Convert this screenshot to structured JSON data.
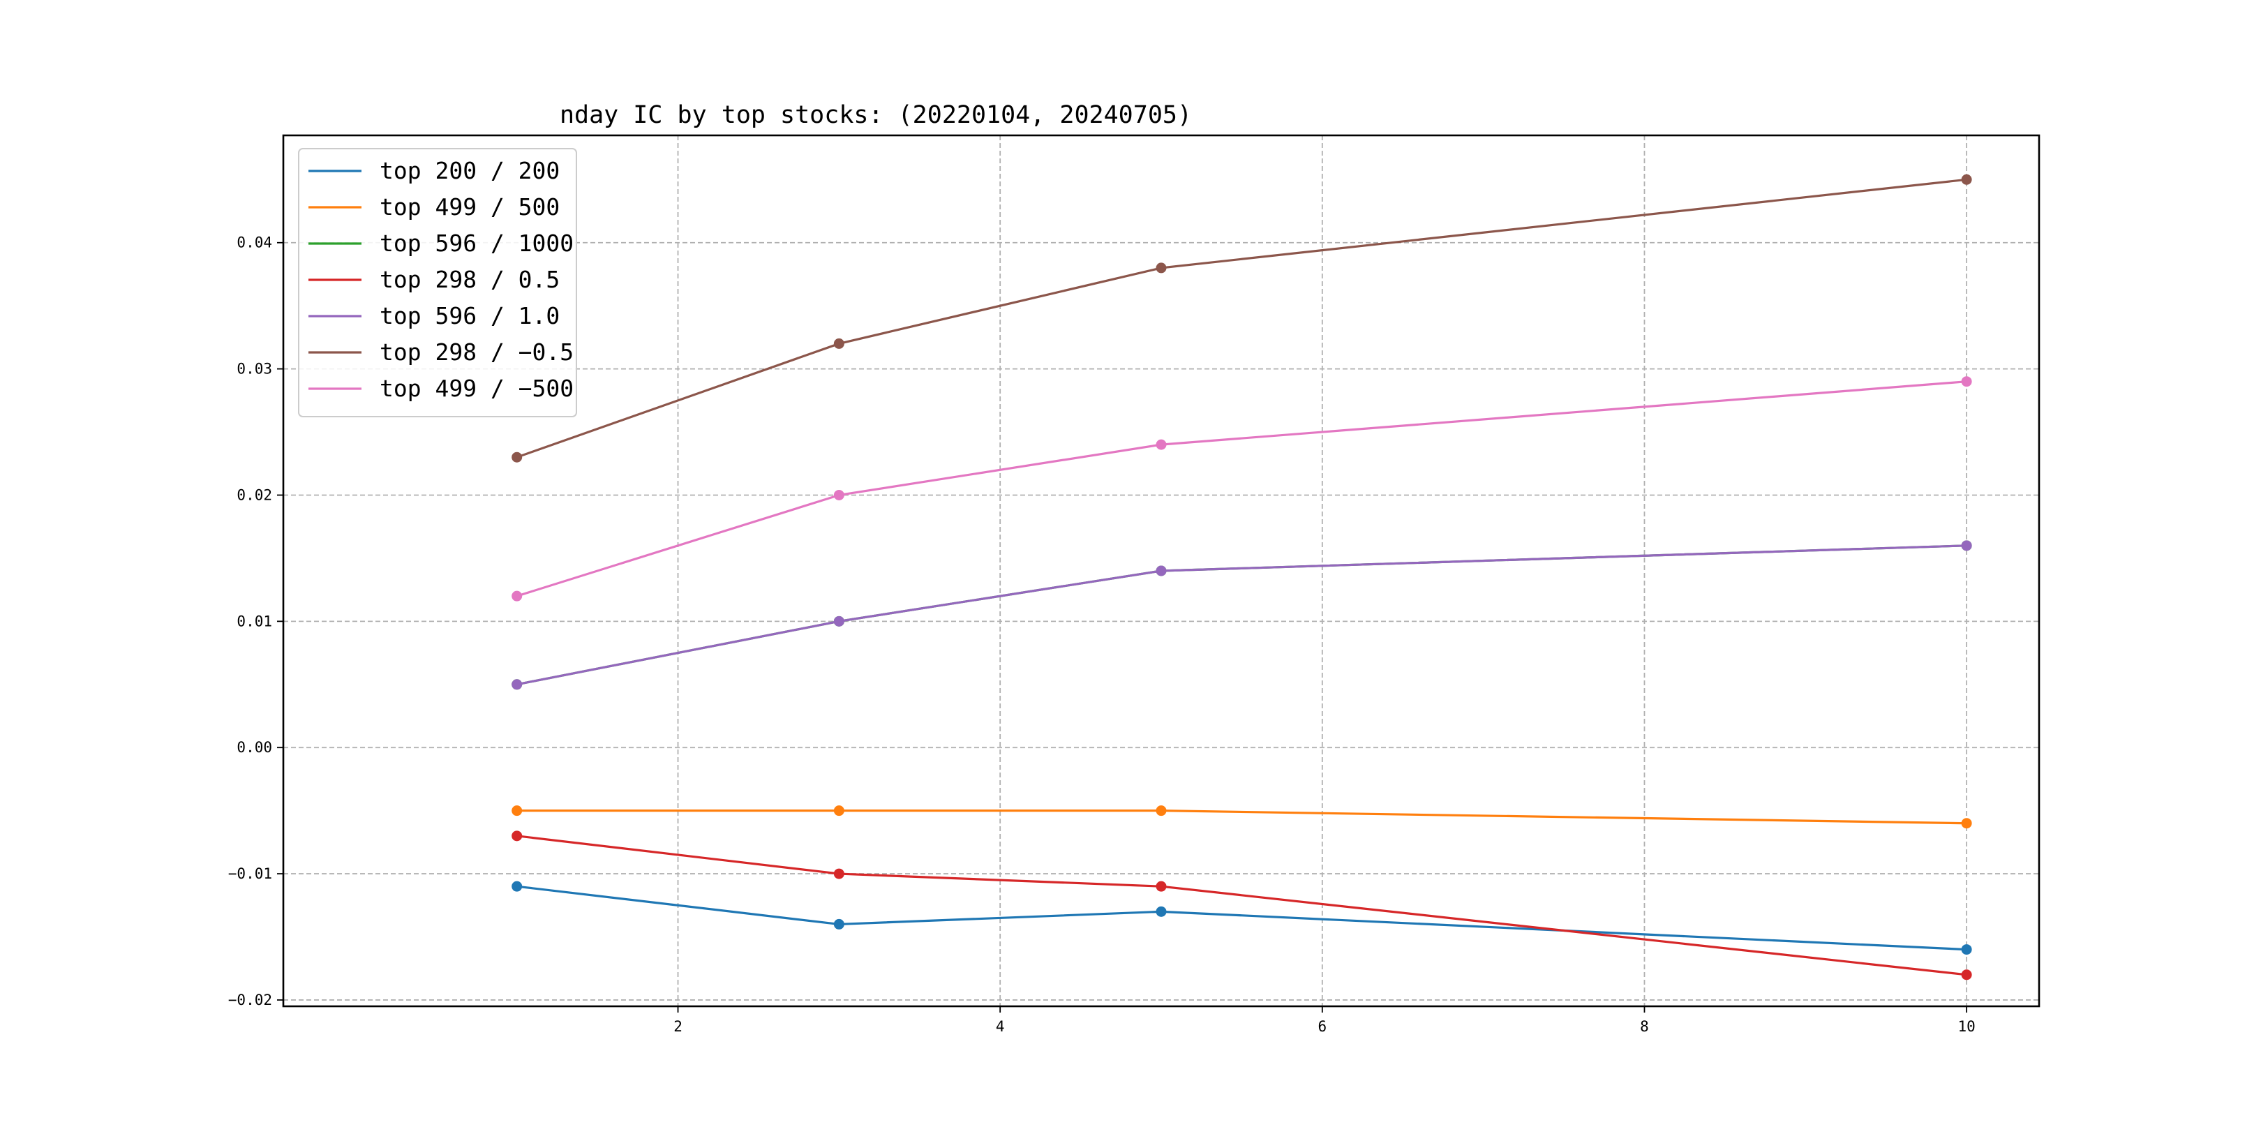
{
  "chart_data": {
    "type": "line",
    "title": "nday IC by top stocks: (20220104, 20240705)",
    "xlabel": "",
    "ylabel": "",
    "x": [
      1,
      3,
      5,
      10
    ],
    "xlim": [
      -0.45,
      10.45
    ],
    "ylim": [
      -0.0205,
      0.0485
    ],
    "xticks": [
      2,
      4,
      6,
      8,
      10
    ],
    "xtick_labels": [
      "2",
      "4",
      "6",
      "8",
      "10"
    ],
    "yticks": [
      -0.02,
      -0.01,
      0.0,
      0.01,
      0.02,
      0.03,
      0.04
    ],
    "ytick_labels": [
      "−0.02",
      "−0.01",
      "0.00",
      "0.01",
      "0.02",
      "0.03",
      "0.04"
    ],
    "grid": true,
    "legend_position": "top-left",
    "series": [
      {
        "name": "top 200 / 200",
        "color": "#1f77b4",
        "values": [
          -0.011,
          -0.014,
          -0.013,
          -0.016
        ]
      },
      {
        "name": "top 499 / 500",
        "color": "#ff7f0e",
        "values": [
          -0.005,
          -0.005,
          -0.005,
          -0.006
        ]
      },
      {
        "name": "top 596 / 1000",
        "color": "#2ca02c",
        "values": [
          0.005,
          0.01,
          0.014,
          0.016
        ]
      },
      {
        "name": "top 298 / 0.5",
        "color": "#d62728",
        "values": [
          -0.007,
          -0.01,
          -0.011,
          -0.018
        ]
      },
      {
        "name": "top 596 / 1.0",
        "color": "#9467bd",
        "values": [
          0.005,
          0.01,
          0.014,
          0.016
        ]
      },
      {
        "name": "top 298 / −0.5",
        "color": "#8c564b",
        "values": [
          0.023,
          0.032,
          0.038,
          0.045
        ]
      },
      {
        "name": "top 499 / −500",
        "color": "#e377c2",
        "values": [
          0.012,
          0.02,
          0.024,
          0.029
        ]
      }
    ]
  }
}
